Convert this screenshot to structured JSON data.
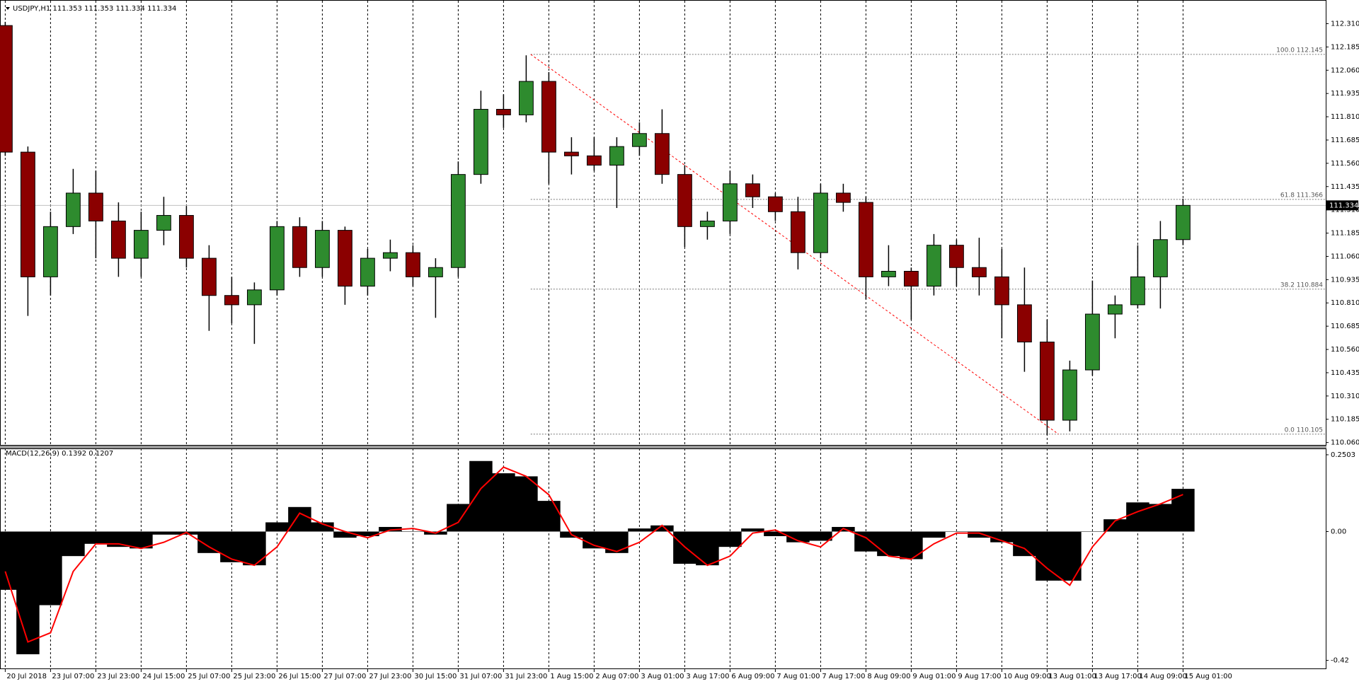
{
  "chart_data": [
    {
      "type": "candlestick",
      "title": "USDJPY,H1  111.353 111.353 111.334 111.334",
      "open": [
        112.3,
        111.62,
        110.95,
        111.22,
        111.4,
        111.25,
        111.05,
        111.2,
        111.28,
        111.05,
        110.85,
        110.8,
        110.88,
        111.22,
        111.0,
        111.2,
        110.9,
        111.05,
        111.08,
        110.95,
        111.0,
        111.5,
        111.85,
        111.82,
        112.0,
        111.62,
        111.6,
        111.55,
        111.65,
        111.72,
        111.5,
        111.22,
        111.25,
        111.45,
        111.38,
        111.3,
        111.08,
        111.4,
        111.35,
        110.95,
        110.98,
        110.9,
        111.12,
        111.0,
        110.95,
        110.8,
        110.6,
        110.18,
        110.45,
        110.75,
        110.8,
        110.95,
        111.15
      ],
      "high": [
        112.32,
        111.65,
        111.3,
        111.53,
        111.52,
        111.35,
        111.3,
        111.38,
        111.33,
        111.12,
        110.95,
        110.92,
        111.25,
        111.27,
        111.25,
        111.22,
        111.1,
        111.15,
        111.12,
        111.05,
        111.57,
        111.95,
        111.93,
        112.14,
        112.05,
        111.7,
        111.7,
        111.7,
        111.78,
        111.85,
        111.55,
        111.3,
        111.52,
        111.5,
        111.4,
        111.38,
        111.45,
        111.45,
        111.38,
        111.12,
        111.0,
        111.18,
        111.15,
        111.16,
        111.1,
        111.0,
        110.72,
        110.5,
        110.93,
        110.85,
        111.12,
        111.25,
        111.37
      ],
      "low": [
        111.6,
        110.74,
        110.85,
        111.18,
        111.05,
        110.95,
        110.95,
        111.12,
        111.0,
        110.66,
        110.7,
        110.59,
        110.85,
        110.95,
        110.95,
        110.8,
        110.85,
        110.98,
        110.9,
        110.73,
        110.95,
        111.45,
        111.75,
        111.78,
        111.45,
        111.5,
        111.52,
        111.32,
        111.6,
        111.45,
        111.11,
        111.15,
        111.18,
        111.32,
        111.25,
        110.99,
        111.05,
        111.3,
        110.83,
        110.9,
        110.72,
        110.85,
        110.9,
        110.85,
        110.62,
        110.44,
        110.1,
        110.12,
        110.42,
        110.62,
        110.78,
        110.78,
        111.12
      ],
      "close": [
        111.62,
        110.95,
        111.22,
        111.4,
        111.25,
        111.05,
        111.2,
        111.28,
        111.05,
        110.85,
        110.8,
        110.88,
        111.22,
        111.0,
        111.2,
        110.9,
        111.05,
        111.08,
        110.95,
        111.0,
        111.5,
        111.85,
        111.82,
        112.0,
        111.62,
        111.6,
        111.55,
        111.65,
        111.72,
        111.5,
        111.22,
        111.25,
        111.45,
        111.38,
        111.3,
        111.08,
        111.4,
        111.35,
        110.95,
        110.98,
        110.9,
        111.12,
        111.0,
        110.95,
        110.8,
        110.6,
        110.18,
        110.45,
        110.75,
        110.8,
        110.95,
        111.15,
        111.334
      ],
      "up_color": "#2e8b2e",
      "down_color": "#8b0000",
      "current_price": 111.334,
      "fib": [
        {
          "label": "100.0 112.145",
          "value": 112.145
        },
        {
          "label": "61.8 111.366",
          "value": 111.366
        },
        {
          "label": "38.2 110.884",
          "value": 110.884
        },
        {
          "label": "0.0 110.105",
          "value": 110.105
        }
      ],
      "fib_x": [
        23.2,
        46.5
      ],
      "xlim": [
        -0.2,
        58.3
      ],
      "ylim": [
        110.051,
        112.422
      ],
      "yticks": [
        {
          "value": 112.31,
          "label": "112.310"
        },
        {
          "value": 112.185,
          "label": "112.185"
        },
        {
          "value": 112.06,
          "label": "112.060"
        },
        {
          "value": 111.935,
          "label": "111.935"
        },
        {
          "value": 111.81,
          "label": "111.810"
        },
        {
          "value": 111.685,
          "label": "111.685"
        },
        {
          "value": 111.56,
          "label": "111.560"
        },
        {
          "value": 111.435,
          "label": "111.435"
        },
        {
          "value": 111.31,
          "label": "111.310"
        },
        {
          "value": 111.185,
          "label": "111.185"
        },
        {
          "value": 111.06,
          "label": "111.060"
        },
        {
          "value": 110.935,
          "label": "110.935"
        },
        {
          "value": 110.81,
          "label": "110.810"
        },
        {
          "value": 110.685,
          "label": "110.685"
        },
        {
          "value": 110.56,
          "label": "110.560"
        },
        {
          "value": 110.435,
          "label": "110.435"
        },
        {
          "value": 110.31,
          "label": "110.310"
        },
        {
          "value": 110.185,
          "label": "110.185"
        },
        {
          "value": 110.06,
          "label": "110.060"
        }
      ],
      "grid": true
    },
    {
      "type": "macd",
      "title": "MACD(12,26,9) 0.1392 0.1207",
      "series": [
        {
          "color": "#000000",
          "values": [
            -0.19,
            -0.4,
            -0.24,
            -0.08,
            -0.04,
            -0.05,
            -0.055,
            -0.01,
            -0.01,
            -0.07,
            -0.1,
            -0.11,
            0.03,
            0.08,
            0.03,
            -0.02,
            -0.015,
            0.015,
            0.0,
            -0.01,
            0.09,
            0.23,
            0.19,
            0.18,
            0.1,
            -0.02,
            -0.055,
            -0.07,
            0.01,
            0.02,
            -0.105,
            -0.11,
            -0.05,
            0.01,
            -0.015,
            -0.035,
            -0.03,
            0.015,
            -0.065,
            -0.08,
            -0.09,
            -0.02,
            0.0,
            -0.02,
            -0.035,
            -0.08,
            -0.16,
            -0.16,
            0.0,
            0.04,
            0.095,
            0.09,
            0.1392
          ]
        },
        {
          "color": "#ff0000",
          "values": [
            -0.13,
            -0.36,
            -0.33,
            -0.13,
            -0.04,
            -0.04,
            -0.055,
            -0.035,
            -0.003,
            -0.05,
            -0.09,
            -0.11,
            -0.05,
            0.06,
            0.025,
            0.0,
            -0.02,
            0.005,
            0.01,
            -0.005,
            0.03,
            0.14,
            0.21,
            0.18,
            0.12,
            -0.01,
            -0.045,
            -0.065,
            -0.035,
            0.02,
            -0.05,
            -0.11,
            -0.08,
            -0.005,
            0.005,
            -0.03,
            -0.05,
            0.01,
            -0.02,
            -0.08,
            -0.09,
            -0.04,
            -0.005,
            -0.005,
            -0.03,
            -0.055,
            -0.12,
            -0.175,
            -0.05,
            0.035,
            0.065,
            0.09,
            0.1207
          ]
        }
      ],
      "xlim": [
        -0.2,
        58.3
      ],
      "ylim": [
        -0.444,
        0.264
      ],
      "yticks": [
        0.2503,
        {
          "value": 0,
          "label": "0.00"
        },
        -0.42
      ],
      "xticks": [
        {
          "value": 0,
          "label": "20 Jul 2018"
        },
        {
          "value": 2,
          "label": "23 Jul 07:00"
        },
        {
          "value": 4,
          "label": "23 Jul 23:00"
        },
        {
          "value": 6,
          "label": "24 Jul 15:00"
        },
        {
          "value": 8,
          "label": "25 Jul 07:00"
        },
        {
          "value": 10,
          "label": "25 Jul 23:00"
        },
        {
          "value": 12,
          "label": "26 Jul 15:00"
        },
        {
          "value": 14,
          "label": "27 Jul 07:00"
        },
        {
          "value": 16,
          "label": "27 Jul 23:00"
        },
        {
          "value": 18,
          "label": "30 Jul 15:00"
        },
        {
          "value": 20,
          "label": "31 Jul 07:00"
        },
        {
          "value": 22,
          "label": "31 Jul 23:00"
        },
        {
          "value": 24,
          "label": "1 Aug 15:00"
        },
        {
          "value": 26,
          "label": "2 Aug 07:00"
        },
        {
          "value": 28,
          "label": "3 Aug 01:00"
        },
        {
          "value": 30,
          "label": "3 Aug 17:00"
        },
        {
          "value": 32,
          "label": "6 Aug 09:00"
        },
        {
          "value": 34,
          "label": "7 Aug 01:00"
        },
        {
          "value": 36,
          "label": "7 Aug 17:00"
        },
        {
          "value": 38,
          "label": "8 Aug 09:00"
        },
        {
          "value": 40,
          "label": "9 Aug 01:00"
        },
        {
          "value": 42,
          "label": "9 Aug 17:00"
        },
        {
          "value": 44,
          "label": "10 Aug 09:00"
        },
        {
          "value": 46,
          "label": "13 Aug 01:00"
        },
        {
          "value": 48,
          "label": "13 Aug 17:00"
        },
        {
          "value": 50,
          "label": "14 Aug 09:00"
        },
        {
          "value": 52,
          "label": "15 Aug 01:00"
        }
      ]
    }
  ]
}
